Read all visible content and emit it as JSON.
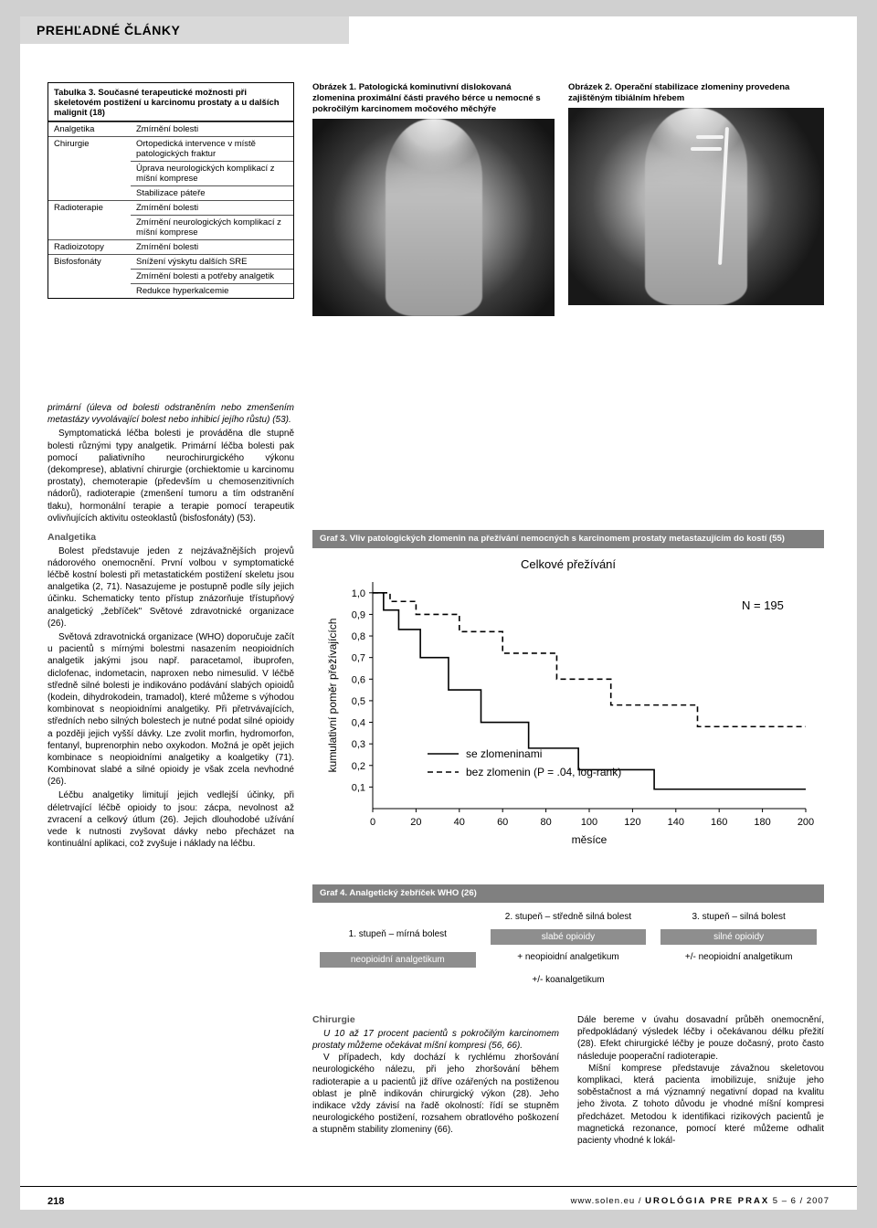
{
  "header": {
    "title": "PREHĽADNÉ ČLÁNKY"
  },
  "table3": {
    "title_line1": "Tabulka 3.",
    "title_rest": " Současné terapeutické možnosti při skeletovém postižení u karcinomu prostaty a u dalších malignit (18)",
    "rows": [
      [
        "Analgetika",
        "Zmírnění bolesti"
      ],
      [
        "Chirurgie",
        "Ortopedická intervence v místě patologických fraktur"
      ],
      [
        "",
        "Úprava neurologických komplikací z míšní komprese"
      ],
      [
        "",
        "Stabilizace páteře"
      ],
      [
        "Radioterapie",
        "Zmírnění bolesti"
      ],
      [
        "",
        "Zmírnění neurologických komplikací z míšní komprese"
      ],
      [
        "Radioizotopy",
        "Zmírnění bolesti"
      ],
      [
        "Bisfosfonáty",
        "Snížení výskytu dalších SRE"
      ],
      [
        "",
        "Zmírnění bolesti a potřeby analgetik"
      ],
      [
        "",
        "Redukce hyperkalcemie"
      ]
    ]
  },
  "fig1": {
    "caption": "Obrázek 1. Patologická kominutivní dislokovaná zlomenina proximální části pravého bérce u nemocné s pokročilým karcinomem močového měchýře"
  },
  "fig2": {
    "caption": "Obrázek 2. Operační stabilizace zlomeniny provedena zajištěným tibiálním hřebem"
  },
  "body": {
    "p1": "primární (úleva od bolesti odstraněním nebo zmenšením metastázy vyvolávající bolest nebo inhibicí jejího růstu) (53).",
    "p2": "Symptomatická léčba bolesti je prováděna dle stupně bolesti různými typy analgetik. Primární léčba bolesti pak pomocí paliativního neurochirurgického výkonu (dekomprese), ablativní chirurgie (orchiektomie u karcinomu prostaty), chemoterapie (především u chemosenzitivních nádorů), radioterapie (zmenšení tumoru a tím odstranění tlaku), hormonální terapie a terapie pomocí terapeutik ovlivňujících aktivitu osteoklastů (bisfosfonáty) (53).",
    "h1": "Analgetika",
    "p3": "Bolest představuje jeden z nejzávažnějších projevů nádorového onemocnění. První volbou v symptomatické léčbě kostní bolesti při metastatickém postižení skeletu jsou analgetika (2, 71). Nasazujeme je postupně podle síly jejich účinku. Schematicky tento přístup znázorňuje třístupňový analgetický „žebříček\" Světové zdravotnické organizace (26).",
    "p4": "Světová zdravotnická organizace (WHO) doporučuje začít u pacientů s mírnými bolestmi nasazením neopioidních analgetik jakými jsou např. paracetamol, ibuprofen, diclofenac, indometacin, naproxen nebo nimesulid. V léčbě středně silné bolesti je indikováno podávání slabých opioidů (kodein, dihydrokodein, tramadol), které můžeme s výhodou kombinovat s neopioidními analgetiky. Při přetrvávajících, středních nebo silných bolestech je nutné podat silné opioidy a později jejich vyšší dávky. Lze zvolit morfin, hydromorfon, fentanyl, buprenorphin nebo oxykodon. Možná je opět jejich kombinace s neopioidními analgetiky a koalgetiky (71). Kombinovat slabé a silné opioidy je však zcela nevhodné (26).",
    "p5": "Léčbu analgetiky limitují jejich vedlejší účinky, při déletrvající léčbě opioidy to jsou: zácpa, nevolnost až zvracení a celkový útlum (26). Jejich dlouhodobé užívání vede k nutnosti zvyšovat dávky nebo přecházet na kontinuální aplikaci, což zvyšuje i náklady na léčbu."
  },
  "graf3": {
    "title": "Graf 3. Vliv patologických zlomenin na přežívání nemocných s karcinomem prostaty metastazujícím do kostí (55)",
    "chart": {
      "type": "kaplan-meier",
      "main_title": "Celkové přežívání",
      "xlabel": "měsíce",
      "ylabel": "kumulativní poměr přežívajících",
      "xlim": [
        0,
        200
      ],
      "xtick_step": 20,
      "ylim": [
        0,
        1.05
      ],
      "yticks": [
        0.1,
        0.2,
        0.3,
        0.4,
        0.5,
        0.6,
        0.7,
        0.8,
        0.9,
        1.0
      ],
      "n_label": "N = 195",
      "legend": {
        "solid": "se zlomeninami",
        "dashed": "bez zlomenin (P = .04, log-rank)"
      },
      "series_solid": {
        "color": "#000",
        "dash": "none",
        "points": [
          [
            0,
            1.0
          ],
          [
            5,
            1.0
          ],
          [
            5,
            0.92
          ],
          [
            12,
            0.92
          ],
          [
            12,
            0.83
          ],
          [
            22,
            0.83
          ],
          [
            22,
            0.7
          ],
          [
            35,
            0.7
          ],
          [
            35,
            0.55
          ],
          [
            50,
            0.55
          ],
          [
            50,
            0.4
          ],
          [
            72,
            0.4
          ],
          [
            72,
            0.28
          ],
          [
            95,
            0.28
          ],
          [
            95,
            0.18
          ],
          [
            130,
            0.18
          ],
          [
            130,
            0.09
          ],
          [
            200,
            0.09
          ]
        ]
      },
      "series_dashed": {
        "color": "#000",
        "dash": "6,4",
        "points": [
          [
            0,
            1.0
          ],
          [
            8,
            1.0
          ],
          [
            8,
            0.96
          ],
          [
            20,
            0.96
          ],
          [
            20,
            0.9
          ],
          [
            40,
            0.9
          ],
          [
            40,
            0.82
          ],
          [
            60,
            0.82
          ],
          [
            60,
            0.72
          ],
          [
            85,
            0.72
          ],
          [
            85,
            0.6
          ],
          [
            110,
            0.6
          ],
          [
            110,
            0.48
          ],
          [
            150,
            0.48
          ],
          [
            150,
            0.38
          ],
          [
            200,
            0.38
          ]
        ]
      },
      "background_color": "#ffffff",
      "axis_color": "#000000",
      "font_size_axis": 12,
      "font_size_tick": 11
    }
  },
  "graf4": {
    "title": "Graf 4. Analgetický žebříček WHO (26)",
    "cells": {
      "s1_head": "1. stupeň – mírná bolest",
      "s2_head": "2. stupeň – středně silná bolest",
      "s3_head": "3. stupeň – silná bolest",
      "s1_band": "neopioidní analgetikum",
      "s2_band": "slabé opioidy",
      "s3_band": "silné opioidy",
      "s2_sub1": "+ neopioidní analgetikum",
      "s2_sub2": "+/- koanalgetikum",
      "s3_sub1": "+/- neopioidní analgetikum"
    }
  },
  "lower": {
    "h2": "Chirurgie",
    "c2p1": "U 10 až 17 procent pacientů s pokročilým karcinomem prostaty můžeme očekávat míšní kompresi (56, 66).",
    "c2p2": "V případech, kdy dochází k rychlému zhoršování neurologického nálezu, při jeho zhoršování během radioterapie a u pacientů již dříve ozářených na postiženou oblast je plně indikován chirurgický výkon (28). Jeho indikace vždy závisí na řadě okolností: řídí se stupněm neurologického postižení, rozsahem obratlového poškození a stupněm stability zlomeniny (66).",
    "c3p1": "Dále bereme v úvahu dosavadní průběh onemocnění, předpokládaný výsledek léčby i očekávanou délku přežití (28). Efekt chirurgické léčby je pouze dočasný, proto často následuje pooperační radioterapie.",
    "c3p2": "Míšní komprese představuje závažnou skeletovou komplikaci, která pacienta imobilizuje, snižuje jeho soběstačnost a má významný negativní dopad na kvalitu jeho života. Z tohoto důvodu je vhodné míšní kompresi předcházet. Metodou k identifikaci rizikových pacientů je magnetická rezonance, pomocí které můžeme odhalit pacienty vhodné k lokál-"
  },
  "footer": {
    "page": "218",
    "site": "www.solen.eu",
    "sep": " / ",
    "journal": "UROLÓGIA PRE PRAX",
    "issue": " 5 – 6 / 2007"
  }
}
